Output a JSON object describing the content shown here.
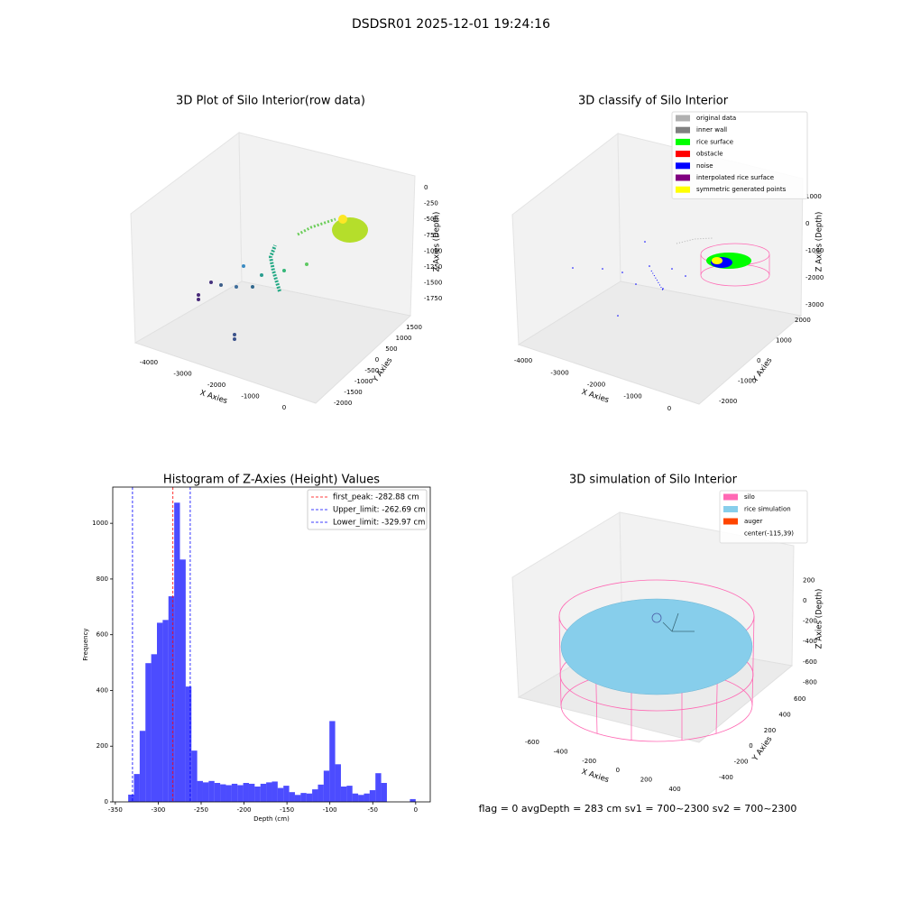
{
  "title": "DSDSR01 2025-12-01 19:24:16",
  "footer": "flag = 0     avgDepth = 283 cm  sv1 = 700~2300  sv2 = 700~2300",
  "chart_data": [
    {
      "type": "scatter3d",
      "title": "3D Plot of Silo Interior(row data)",
      "xlabel": "X Axies",
      "ylabel": "Y Axies",
      "zlabel": "Z Axies (Depth)",
      "xlim": [
        -4250,
        250
      ],
      "xticks": [
        -4000,
        -3000,
        -2000,
        -1000,
        0
      ],
      "ylim": [
        -2200,
        1800
      ],
      "yticks": [
        -2000,
        -1500,
        -1000,
        -500,
        0,
        500,
        1000,
        1500
      ],
      "zlim": [
        -1900,
        100
      ],
      "zticks": [
        -1750,
        -1500,
        -1250,
        -1000,
        -750,
        -500,
        -250,
        0
      ]
    },
    {
      "type": "scatter3d",
      "title": "3D classify of Silo Interior",
      "xlabel": "X Axies",
      "ylabel": "Y Axies",
      "zlabel": "Z Axies (Depth)",
      "xlim": [
        -4250,
        250
      ],
      "xticks": [
        -4000,
        -3000,
        -2000,
        -1000,
        0
      ],
      "ylim": [
        -2300,
        2300
      ],
      "yticks": [
        -2000,
        -1000,
        0,
        1000,
        2000
      ],
      "zlim": [
        -3300,
        1300
      ],
      "zticks": [
        -3000,
        -2000,
        -1000,
        0,
        1000
      ],
      "legend": [
        {
          "name": "original data",
          "color": "#b0b0b0"
        },
        {
          "name": "inner wall",
          "color": "#808080"
        },
        {
          "name": "rice surface",
          "color": "#00ff00"
        },
        {
          "name": "obstacle",
          "color": "#ff0000"
        },
        {
          "name": "noise",
          "color": "#0000ff"
        },
        {
          "name": "interpolated rice surface",
          "color": "#800080"
        },
        {
          "name": "symmetric generated points",
          "color": "#ffff00"
        }
      ]
    },
    {
      "type": "histogram",
      "title": "Histogram of Z-Axies (Height) Values",
      "xlabel": "Depth (cm)",
      "ylabel": "Frequency",
      "color": "#0000ff",
      "bins": [
        -335,
        -328.3,
        -321.6,
        -314.9,
        -308.2,
        -301.5,
        -294.8,
        -288.1,
        -281.4,
        -274.7,
        -268,
        -261.3,
        -254.6,
        -247.9,
        -241.2,
        -234.5,
        -227.8,
        -221.1,
        -214.4,
        -207.7,
        -201,
        -194.3,
        -187.6,
        -180.9,
        -174.2,
        -167.5,
        -160.8,
        -154.1,
        -147.4,
        -140.7,
        -134,
        -127.3,
        -120.6,
        -113.9,
        -107.2,
        -100.5,
        -93.8,
        -87.1,
        -80.4,
        -73.7,
        -67,
        -60.3,
        -53.6,
        -46.9,
        -40.2,
        -33.5,
        -26.8,
        -20.1,
        -13.4,
        -6.7,
        0
      ],
      "values": [
        26,
        100,
        255,
        498,
        530,
        643,
        653,
        738,
        1074,
        870,
        414,
        184,
        75,
        70,
        75,
        68,
        63,
        60,
        65,
        60,
        68,
        65,
        55,
        65,
        70,
        73,
        50,
        58,
        35,
        25,
        32,
        30,
        45,
        62,
        112,
        290,
        135,
        55,
        58,
        30,
        25,
        30,
        42,
        103,
        68,
        0,
        0,
        0,
        0,
        10
      ],
      "xlim": [
        -353,
        17
      ],
      "xticks": [
        -350,
        -300,
        -250,
        -200,
        -150,
        -100,
        -50,
        0
      ],
      "ylim": [
        0,
        1130
      ],
      "yticks": [
        0,
        200,
        400,
        600,
        800,
        1000
      ],
      "vlines": [
        {
          "name": "first_peak: -282.88 cm",
          "value": -282.88,
          "color": "#ff0000"
        },
        {
          "name": "Upper_limit: -262.69 cm",
          "value": -262.69,
          "color": "#0000ff"
        },
        {
          "name": "Lower_limit: -329.97 cm",
          "value": -329.97,
          "color": "#0000ff"
        }
      ],
      "legend_position": "upper right"
    },
    {
      "type": "scatter3d",
      "title": "3D simulation of Silo Interior",
      "xlabel": "X Axies",
      "ylabel": "Y Axies",
      "zlabel": "Z Axies (Depth)",
      "xlim": [
        -700,
        500
      ],
      "xticks": [
        -600,
        -400,
        -200,
        0,
        200,
        400
      ],
      "ylim": [
        -500,
        700
      ],
      "yticks": [
        -400,
        -200,
        0,
        200,
        400,
        600
      ],
      "zlim": [
        -900,
        300
      ],
      "zticks": [
        -800,
        -600,
        -400,
        -200,
        0,
        200
      ],
      "legend": [
        {
          "name": "silo",
          "color": "#ff69b4"
        },
        {
          "name": "rice simulation",
          "color": "#87ceeb"
        },
        {
          "name": "auger",
          "color": "#ff4500"
        },
        {
          "name": "center(-115,39)"
        }
      ]
    }
  ]
}
